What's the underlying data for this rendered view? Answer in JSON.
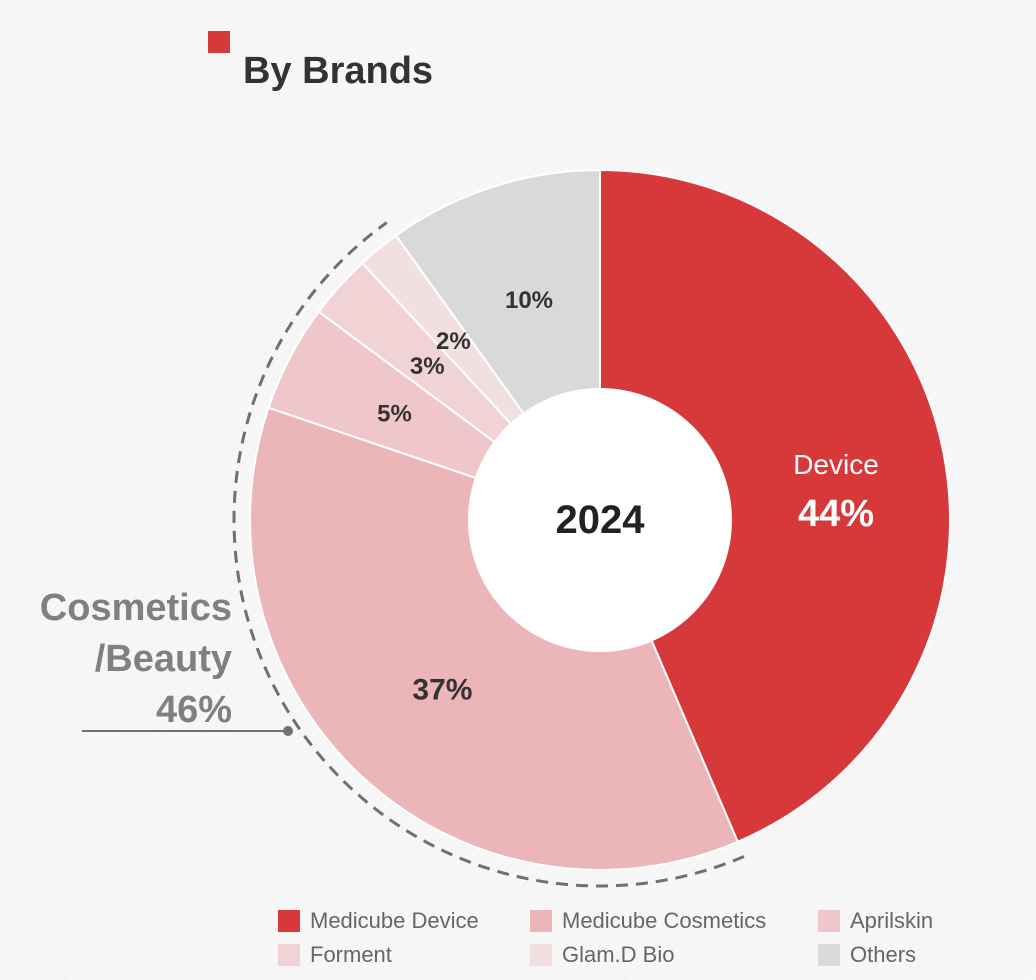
{
  "chart_data": {
    "type": "pie",
    "variant": "donut",
    "title": "By Brands",
    "center_label": "2024",
    "series": [
      {
        "name": "Medicube Device",
        "value": 44,
        "label": "44%",
        "color": "#d7393a"
      },
      {
        "name": "Medicube Cosmetics",
        "value": 37,
        "label": "37%",
        "color": "#ecb5b8"
      },
      {
        "name": "Aprilskin",
        "value": 5,
        "label": "5%",
        "color": "#efc7ca"
      },
      {
        "name": "Forment",
        "value": 3,
        "label": "3%",
        "color": "#f1d3d5"
      },
      {
        "name": "Glam.D Bio",
        "value": 2,
        "label": "2%",
        "color": "#f2e0e1"
      },
      {
        "name": "Others",
        "value": 10,
        "label": "10%",
        "color": "#d9d9d9"
      }
    ],
    "groups": [
      {
        "line1": "Device",
        "line2": "44%",
        "members": [
          "Medicube Device"
        ],
        "value": 44
      },
      {
        "line1": "Cosmetics",
        "line2": "/Beauty",
        "line3": "46%",
        "members": [
          "Medicube Cosmetics",
          "Aprilskin",
          "Forment",
          "Glam.D Bio"
        ],
        "value": 46
      }
    ],
    "legend": {
      "position": "bottom-right",
      "columns": 3
    },
    "title_marker_color": "#d7393a"
  }
}
